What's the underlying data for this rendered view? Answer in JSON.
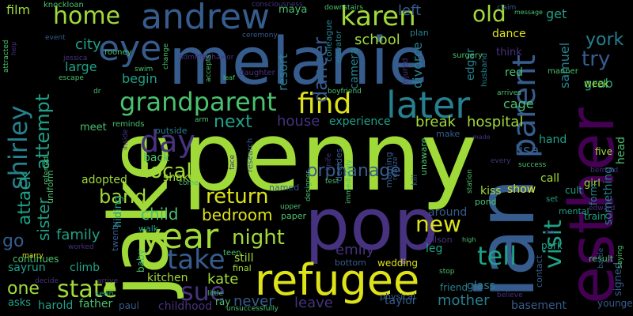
{
  "palette": {
    "background": "#000000",
    "yellow": "#dde318",
    "lime": "#a0da39",
    "green": "#4ac16d",
    "teal": "#1fa187",
    "cyan": "#277f8e",
    "blue": "#365c8d",
    "indigo": "#46327e",
    "purple": "#440154"
  },
  "words": [
    {
      "text": "melanie",
      "color": "#365c8d"
    },
    {
      "text": "penny",
      "color": "#a0da39"
    },
    {
      "text": "jake",
      "color": "#a0da39"
    },
    {
      "text": "ian",
      "color": "#365c8d"
    },
    {
      "text": "pop",
      "color": "#46327e"
    },
    {
      "text": "esther",
      "color": "#440154"
    },
    {
      "text": "refugee",
      "color": "#dde318"
    },
    {
      "text": "andrew",
      "color": "#365c8d"
    },
    {
      "text": "year",
      "color": "#a0da39"
    },
    {
      "text": "grandparent",
      "color": "#4ac16d"
    },
    {
      "text": "later",
      "color": "#277f8e"
    },
    {
      "text": "shirley",
      "color": "#277f8e"
    },
    {
      "text": "parent",
      "color": "#365c8d"
    },
    {
      "text": "eye",
      "color": "#365c8d"
    },
    {
      "text": "home",
      "color": "#a0da39"
    },
    {
      "text": "karen",
      "color": "#a0da39"
    },
    {
      "text": "day",
      "color": "#46327e"
    },
    {
      "text": "find",
      "color": "#dde318"
    },
    {
      "text": "old",
      "color": "#a0da39"
    },
    {
      "text": "take",
      "color": "#365c8d"
    },
    {
      "text": "return",
      "color": "#dde318"
    },
    {
      "text": "tell",
      "color": "#1fa187"
    },
    {
      "text": "visit",
      "color": "#1fa187"
    },
    {
      "text": "new",
      "color": "#dde318"
    },
    {
      "text": "state",
      "color": "#a0da39"
    },
    {
      "text": "sue",
      "color": "#46327e"
    },
    {
      "text": "night",
      "color": "#a0da39"
    },
    {
      "text": "local",
      "color": "#a0da39"
    },
    {
      "text": "attempt",
      "color": "#1fa187"
    },
    {
      "text": "orphanage",
      "color": "#365c8d"
    },
    {
      "text": "band",
      "color": "#a0da39"
    },
    {
      "text": "next",
      "color": "#1fa187"
    },
    {
      "text": "dancer",
      "color": "#365c8d"
    },
    {
      "text": "try",
      "color": "#365c8d"
    },
    {
      "text": "york",
      "color": "#277f8e"
    },
    {
      "text": "attack",
      "color": "#1fa187"
    },
    {
      "text": "sister",
      "color": "#1fa187"
    },
    {
      "text": "house",
      "color": "#46327e"
    },
    {
      "text": "break",
      "color": "#a0da39"
    },
    {
      "text": "hospital",
      "color": "#a0da39"
    },
    {
      "text": "emily",
      "color": "#46327e"
    },
    {
      "text": "kate",
      "color": "#a0da39"
    },
    {
      "text": "mother",
      "color": "#277f8e"
    },
    {
      "text": "leave",
      "color": "#46327e"
    },
    {
      "text": "never",
      "color": "#365c8d"
    },
    {
      "text": "bedroom",
      "color": "#dde318"
    },
    {
      "text": "child",
      "color": "#4ac16d"
    },
    {
      "text": "family",
      "color": "#1fa187"
    },
    {
      "text": "one",
      "color": "#a0da39"
    },
    {
      "text": "go",
      "color": "#365c8d"
    },
    {
      "text": "school",
      "color": "#a0da39"
    },
    {
      "text": "city",
      "color": "#1fa187"
    },
    {
      "text": "large",
      "color": "#1fa187"
    },
    {
      "text": "begin",
      "color": "#1fa187"
    },
    {
      "text": "resort",
      "color": "#277f8e"
    },
    {
      "text": "divorce",
      "color": "#277f8e"
    },
    {
      "text": "left",
      "color": "#365c8d"
    },
    {
      "text": "get",
      "color": "#1fa187"
    },
    {
      "text": "grab",
      "color": "#1fa187"
    },
    {
      "text": "samuel",
      "color": "#277f8e"
    },
    {
      "text": "lisa",
      "color": "#365c8d"
    },
    {
      "text": "hand",
      "color": "#1fa187"
    },
    {
      "text": "cage",
      "color": "#4ac16d"
    },
    {
      "text": "experience",
      "color": "#1fa187"
    },
    {
      "text": "back",
      "color": "#4ac16d"
    },
    {
      "text": "adopted",
      "color": "#a0da39"
    },
    {
      "text": "kiss",
      "color": "#a0da39"
    },
    {
      "text": "show",
      "color": "#dde318"
    },
    {
      "text": "call",
      "color": "#a0da39"
    },
    {
      "text": "around",
      "color": "#365c8d"
    },
    {
      "text": "dance",
      "color": "#dde318"
    },
    {
      "text": "camera",
      "color": "#277f8e"
    },
    {
      "text": "edgar",
      "color": "#277f8e"
    },
    {
      "text": "red",
      "color": "#4ac16d"
    },
    {
      "text": "shake",
      "color": "#a0da39"
    },
    {
      "text": "still",
      "color": "#a0da39"
    },
    {
      "text": "leg",
      "color": "#1fa187"
    },
    {
      "text": "taylor",
      "color": "#365c8d"
    },
    {
      "text": "glass",
      "color": "#277f8e"
    },
    {
      "text": "basement",
      "color": "#365c8d"
    },
    {
      "text": "harold",
      "color": "#1fa187"
    },
    {
      "text": "father",
      "color": "#4ac16d"
    },
    {
      "text": "sayrun",
      "color": "#1fa187"
    },
    {
      "text": "climb",
      "color": "#1fa187"
    },
    {
      "text": "kitchen",
      "color": "#a0da39"
    },
    {
      "text": "childhood",
      "color": "#46327e"
    },
    {
      "text": "something",
      "color": "#277f8e"
    },
    {
      "text": "head",
      "color": "#4ac16d"
    },
    {
      "text": "signed",
      "color": "#365c8d"
    },
    {
      "text": "hiding",
      "color": "#1fa187"
    },
    {
      "text": "meet",
      "color": "#4ac16d"
    },
    {
      "text": "baby",
      "color": "#4ac16d"
    },
    {
      "text": "film",
      "color": "#a0da39"
    },
    {
      "text": "knockloan",
      "color": "#4ac16d"
    },
    {
      "text": "rooney",
      "color": "#4ac16d"
    },
    {
      "text": "maya",
      "color": "#4ac16d"
    },
    {
      "text": "colleague",
      "color": "#277f8e"
    },
    {
      "text": "think",
      "color": "#46327e"
    },
    {
      "text": "manner",
      "color": "#4ac16d"
    },
    {
      "text": "week",
      "color": "#a0da39"
    },
    {
      "text": "five",
      "color": "#a0da39"
    },
    {
      "text": "girl",
      "color": "#a0da39"
    },
    {
      "text": "form",
      "color": "#277f8e"
    },
    {
      "text": "train",
      "color": "#1fa187"
    },
    {
      "text": "cult",
      "color": "#1fa187"
    },
    {
      "text": "set",
      "color": "#1fa187"
    },
    {
      "text": "mental",
      "color": "#1fa187"
    },
    {
      "text": "result",
      "color": "#4ac16d"
    },
    {
      "text": "younger",
      "color": "#365c8d"
    },
    {
      "text": "wedding",
      "color": "#dde318"
    },
    {
      "text": "bottom",
      "color": "#365c8d"
    },
    {
      "text": "physical",
      "color": "#365c8d"
    },
    {
      "text": "friend",
      "color": "#277f8e"
    },
    {
      "text": "park",
      "color": "#1fa187"
    },
    {
      "text": "contact",
      "color": "#365c8d"
    },
    {
      "text": "wilson",
      "color": "#46327e"
    },
    {
      "text": "pond",
      "color": "#4ac16d"
    },
    {
      "text": "paper",
      "color": "#4ac16d"
    },
    {
      "text": "final",
      "color": "#a0da39"
    },
    {
      "text": "teen",
      "color": "#4ac16d"
    },
    {
      "text": "ray",
      "color": "#4ac16d"
    },
    {
      "text": "paul",
      "color": "#365c8d"
    },
    {
      "text": "seen",
      "color": "#1fa187"
    },
    {
      "text": "asks",
      "color": "#1fa187"
    },
    {
      "text": "continues",
      "color": "#4ac16d"
    },
    {
      "text": "uniform",
      "color": "#4ac16d"
    },
    {
      "text": "twenty",
      "color": "#365c8d"
    },
    {
      "text": "walk",
      "color": "#1fa187"
    },
    {
      "text": "named",
      "color": "#365c8d"
    },
    {
      "text": "research",
      "color": "#365c8d"
    },
    {
      "text": "morning",
      "color": "#365c8d"
    },
    {
      "text": "kill",
      "color": "#365c8d"
    },
    {
      "text": "decides",
      "color": "#365c8d"
    },
    {
      "text": "unaware",
      "color": "#4ac16d"
    },
    {
      "text": "make",
      "color": "#365c8d"
    },
    {
      "text": "outside",
      "color": "#277f8e"
    },
    {
      "text": "reminds",
      "color": "#4ac16d"
    },
    {
      "text": "husband",
      "color": "#277f8e"
    },
    {
      "text": "surgery",
      "color": "#4ac16d"
    },
    {
      "text": "injured",
      "color": "#46327e"
    },
    {
      "text": "plan",
      "color": "#277f8e"
    },
    {
      "text": "elevator",
      "color": "#277f8e"
    },
    {
      "text": "daughter",
      "color": "#46327e"
    },
    {
      "text": "consciousness",
      "color": "#46327e"
    },
    {
      "text": "downstairs",
      "color": "#4ac16d"
    },
    {
      "text": "ceremony",
      "color": "#365c8d"
    },
    {
      "text": "admitted",
      "color": "#46327e"
    },
    {
      "text": "behavior",
      "color": "#46327e"
    },
    {
      "text": "swim",
      "color": "#4ac16d"
    },
    {
      "text": "change",
      "color": "#4ac16d"
    },
    {
      "text": "accepts",
      "color": "#4ac16d"
    },
    {
      "text": "jessica",
      "color": "#46327e"
    },
    {
      "text": "event",
      "color": "#365c8d"
    },
    {
      "text": "attracted",
      "color": "#4ac16d"
    },
    {
      "text": "escape",
      "color": "#4ac16d"
    },
    {
      "text": "boyfriend",
      "color": "#4ac16d"
    },
    {
      "text": "arrives",
      "color": "#4ac16d"
    },
    {
      "text": "station",
      "color": "#4ac16d"
    },
    {
      "text": "realize",
      "color": "#365c8d"
    },
    {
      "text": "immediately",
      "color": "#4ac16d"
    },
    {
      "text": "designer",
      "color": "#4ac16d"
    },
    {
      "text": "knife",
      "color": "#46327e"
    },
    {
      "text": "upper",
      "color": "#4ac16d"
    },
    {
      "text": "test",
      "color": "#4ac16d"
    },
    {
      "text": "face",
      "color": "#46327e"
    },
    {
      "text": "arm",
      "color": "#4ac16d"
    },
    {
      "text": "come",
      "color": "#4ac16d"
    },
    {
      "text": "inside",
      "color": "#46327e"
    },
    {
      "text": "referred",
      "color": "#4ac16d"
    },
    {
      "text": "marry",
      "color": "#dde318"
    },
    {
      "text": "worked",
      "color": "#46327e"
    },
    {
      "text": "decide",
      "color": "#46327e"
    },
    {
      "text": "arrive",
      "color": "#46327e"
    },
    {
      "text": "unsuccessfully",
      "color": "#4ac16d"
    },
    {
      "text": "little",
      "color": "#4ac16d"
    },
    {
      "text": "stop",
      "color": "#4ac16d"
    },
    {
      "text": "believe",
      "color": "#46327e"
    },
    {
      "text": "battle",
      "color": "#365c8d"
    },
    {
      "text": "saying",
      "color": "#4ac16d"
    },
    {
      "text": "bernard",
      "color": "#46327e"
    },
    {
      "text": "edward",
      "color": "#46327e"
    },
    {
      "text": "success",
      "color": "#4ac16d"
    },
    {
      "text": "every",
      "color": "#46327e"
    },
    {
      "text": "claim",
      "color": "#365c8d"
    },
    {
      "text": "message",
      "color": "#4ac16d"
    },
    {
      "text": "high",
      "color": "#4ac16d"
    },
    {
      "text": "leaf",
      "color": "#4ac16d"
    },
    {
      "text": "help",
      "color": "#46327e"
    },
    {
      "text": "dr",
      "color": "#4ac16d"
    },
    {
      "text": "made",
      "color": "#46327e"
    },
    {
      "text": "no",
      "color": "#46327e"
    }
  ]
}
